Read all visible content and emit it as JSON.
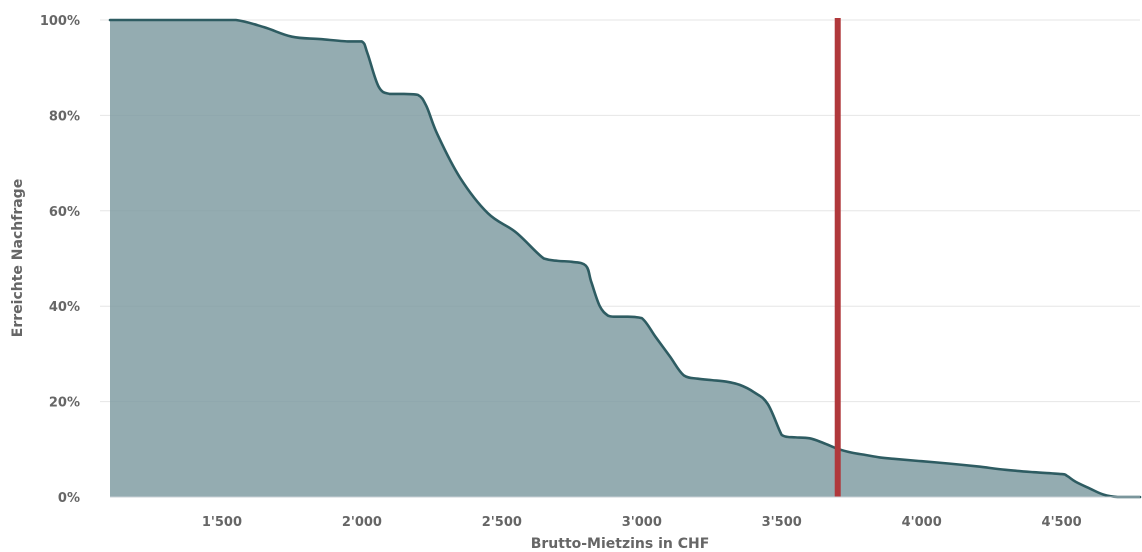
{
  "chart_data": {
    "type": "area",
    "title": "",
    "xlabel": "Brutto-Mietzins in CHF",
    "ylabel": "Erreichte Nachfrage",
    "xlim": [
      1100,
      4780
    ],
    "ylim": [
      0,
      100
    ],
    "x_ticks": [
      1500,
      2000,
      2500,
      3000,
      3500,
      4000,
      4500
    ],
    "x_tick_labels": [
      "1'500",
      "2'000",
      "2'500",
      "3'000",
      "3'500",
      "4'000",
      "4'500"
    ],
    "y_ticks": [
      0,
      20,
      40,
      60,
      80,
      100
    ],
    "y_tick_labels": [
      "0%",
      "20%",
      "40%",
      "60%",
      "80%",
      "100%"
    ],
    "grid": {
      "y": true,
      "x": false
    },
    "legend": "none",
    "series": [
      {
        "x": [
          1100,
          1450,
          1550,
          1650,
          1750,
          1850,
          1950,
          2000,
          2020,
          2060,
          2100,
          2150,
          2200,
          2230,
          2270,
          2350,
          2450,
          2550,
          2650,
          2700,
          2750,
          2800,
          2820,
          2850,
          2880,
          2900,
          2950,
          3000,
          3050,
          3100,
          3150,
          3200,
          3250,
          3300,
          3350,
          3400,
          3450,
          3500,
          3520,
          3550,
          3600,
          3650,
          3700,
          3750,
          3800,
          3850,
          3900,
          4000,
          4100,
          4200,
          4300,
          4400,
          4500,
          4520,
          4550,
          4600,
          4650,
          4700,
          4780
        ],
        "values": [
          100,
          100,
          100,
          98.5,
          96.5,
          96,
          95.5,
          95.5,
          93,
          86,
          84.5,
          84.5,
          84.3,
          82,
          76,
          67,
          59.5,
          55.5,
          50,
          49.5,
          49.3,
          48.5,
          45,
          40,
          38,
          37.8,
          37.8,
          37.5,
          33.5,
          29.5,
          25.5,
          24.8,
          24.5,
          24.2,
          23.5,
          22,
          19.5,
          13,
          12.6,
          12.5,
          12.3,
          11.3,
          10.1,
          9.3,
          8.8,
          8.3,
          8,
          7.5,
          7,
          6.4,
          5.7,
          5.2,
          4.8,
          4.4,
          3.2,
          1.8,
          0.5,
          0,
          0
        ]
      }
    ],
    "marker_line": {
      "x": 3700,
      "color": "#b0383b"
    },
    "colors": {
      "area_fill": "#7c9aa0",
      "area_fill_opacity": 0.82,
      "area_line": "#2e5c62",
      "grid": "#e6e6e6",
      "baseline": "#c8d1d6",
      "text": "#666666"
    }
  }
}
